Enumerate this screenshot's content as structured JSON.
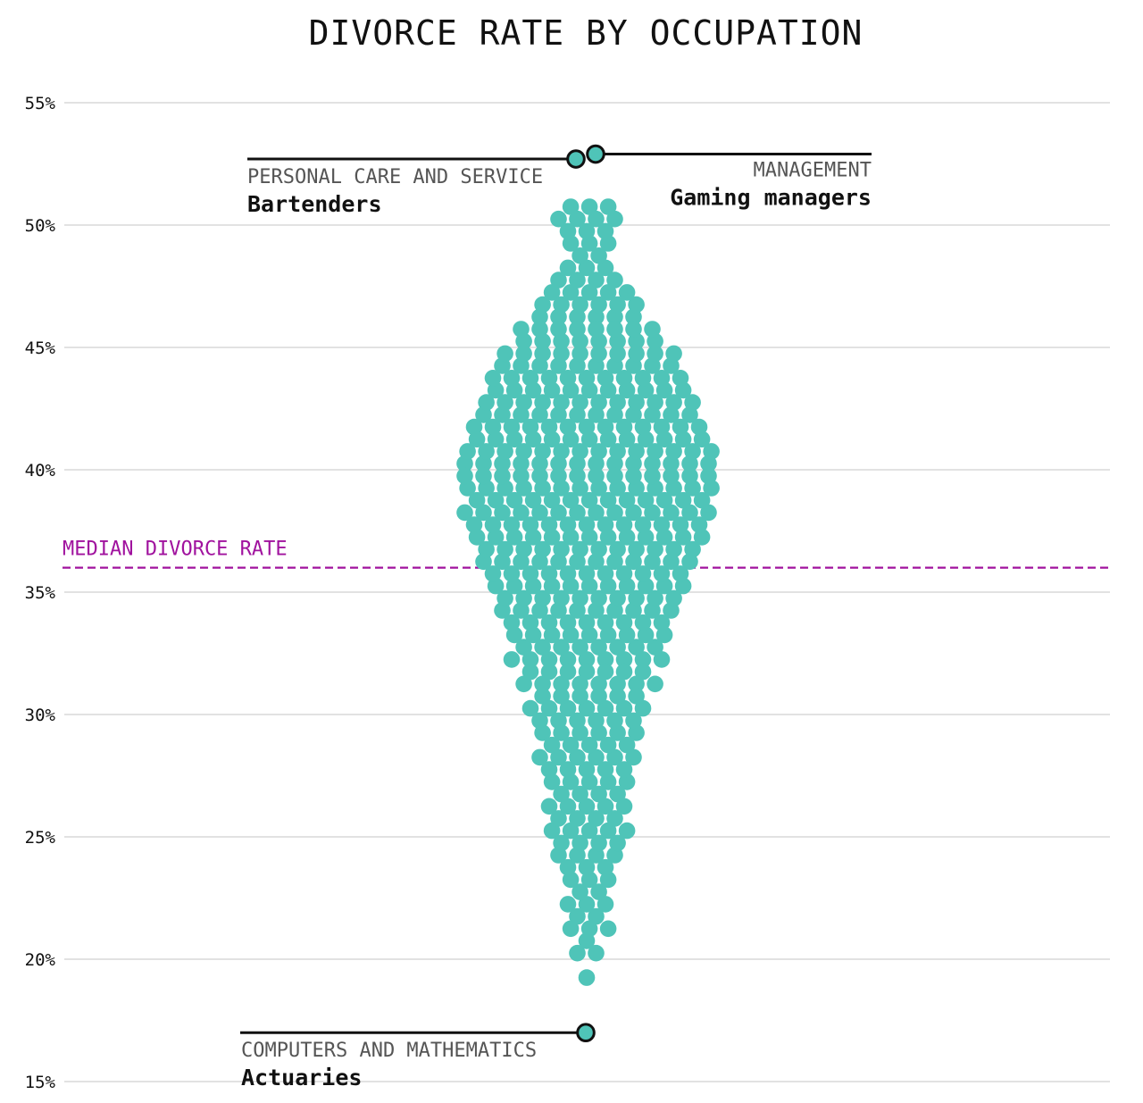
{
  "chart_data": {
    "type": "scatter",
    "subtype": "beeswarm",
    "title": "DIVORCE RATE BY OCCUPATION",
    "xlabel": "",
    "ylabel": "",
    "y_unit": "%",
    "ylim": [
      15,
      55
    ],
    "yticks": [
      {
        "value": 55,
        "label": "55%"
      },
      {
        "value": 50,
        "label": "50%"
      },
      {
        "value": 45,
        "label": "45%"
      },
      {
        "value": 40,
        "label": "40%"
      },
      {
        "value": 35,
        "label": "35%"
      },
      {
        "value": 30,
        "label": "30%"
      },
      {
        "value": 25,
        "label": "25%"
      },
      {
        "value": 20,
        "label": "20%"
      },
      {
        "value": 15,
        "label": "15%"
      }
    ],
    "grid": true,
    "median": {
      "value": 36,
      "label": "MEDIAN DIVORCE RATE",
      "color": "#a0129e"
    },
    "dot_color": "#4fc4b8",
    "highlights": [
      {
        "value": 52.9,
        "category": "MANAGEMENT",
        "name": "Gaming managers"
      },
      {
        "value": 52.7,
        "category": "PERSONAL CARE AND SERVICE",
        "name": "Bartenders"
      },
      {
        "value": 17.0,
        "category": "COMPUTERS AND MATHEMATICS",
        "name": "Actuaries"
      }
    ],
    "distribution": [
      {
        "y": 50,
        "count": 7
      },
      {
        "y": 49,
        "count": 6
      },
      {
        "y": 48,
        "count": 5
      },
      {
        "y": 47,
        "count": 9
      },
      {
        "y": 46,
        "count": 12
      },
      {
        "y": 45,
        "count": 16
      },
      {
        "y": 44,
        "count": 20
      },
      {
        "y": 43,
        "count": 22
      },
      {
        "y": 42,
        "count": 24
      },
      {
        "y": 41,
        "count": 26
      },
      {
        "y": 40,
        "count": 28
      },
      {
        "y": 39,
        "count": 28
      },
      {
        "y": 38,
        "count": 27
      },
      {
        "y": 37,
        "count": 26
      },
      {
        "y": 36,
        "count": 24
      },
      {
        "y": 35,
        "count": 22
      },
      {
        "y": 34,
        "count": 20
      },
      {
        "y": 33,
        "count": 18
      },
      {
        "y": 32,
        "count": 17
      },
      {
        "y": 31,
        "count": 15
      },
      {
        "y": 30,
        "count": 13
      },
      {
        "y": 29,
        "count": 12
      },
      {
        "y": 28,
        "count": 11
      },
      {
        "y": 27,
        "count": 10
      },
      {
        "y": 26,
        "count": 9
      },
      {
        "y": 25,
        "count": 9
      },
      {
        "y": 24,
        "count": 8
      },
      {
        "y": 23,
        "count": 6
      },
      {
        "y": 22,
        "count": 5
      },
      {
        "y": 21,
        "count": 5
      },
      {
        "y": 20,
        "count": 3
      },
      {
        "y": 19,
        "count": 1
      }
    ]
  }
}
